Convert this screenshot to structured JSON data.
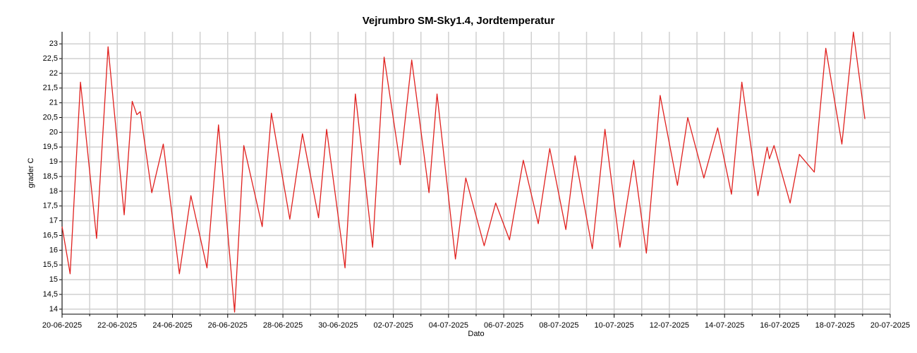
{
  "chart_data": {
    "type": "line",
    "title": "Vejrumbro SM-Sky1.4, Jordtemperatur",
    "x_label": "Dato",
    "y_label": "grader C",
    "x": [
      "2025-06-20T00:00",
      "2025-06-20T07:00",
      "2025-06-20T16:00",
      "2025-06-21T06:00",
      "2025-06-21T16:00",
      "2025-06-22T06:00",
      "2025-06-22T13:00",
      "2025-06-22T17:00",
      "2025-06-22T20:00",
      "2025-06-23T06:00",
      "2025-06-23T16:00",
      "2025-06-24T06:00",
      "2025-06-24T16:00",
      "2025-06-25T06:00",
      "2025-06-25T16:00",
      "2025-06-26T06:00",
      "2025-06-26T14:00",
      "2025-06-27T06:00",
      "2025-06-27T14:00",
      "2025-06-28T06:00",
      "2025-06-28T17:00",
      "2025-06-29T07:00",
      "2025-06-29T14:00",
      "2025-06-30T06:00",
      "2025-06-30T15:00",
      "2025-07-01T06:00",
      "2025-07-01T16:00",
      "2025-07-02T06:00",
      "2025-07-02T16:00",
      "2025-07-03T07:00",
      "2025-07-03T14:00",
      "2025-07-04T06:00",
      "2025-07-04T15:00",
      "2025-07-05T07:00",
      "2025-07-05T17:00",
      "2025-07-06T05:00",
      "2025-07-06T17:00",
      "2025-07-07T06:00",
      "2025-07-07T16:00",
      "2025-07-08T06:00",
      "2025-07-08T14:00",
      "2025-07-09T05:00",
      "2025-07-09T16:00",
      "2025-07-10T05:00",
      "2025-07-10T17:00",
      "2025-07-11T04:00",
      "2025-07-11T16:00",
      "2025-07-12T07:00",
      "2025-07-12T16:00",
      "2025-07-13T06:00",
      "2025-07-13T18:00",
      "2025-07-14T06:00",
      "2025-07-14T15:00",
      "2025-07-15T05:00",
      "2025-07-15T13:00",
      "2025-07-15T15:00",
      "2025-07-15T19:00",
      "2025-07-16T09:00",
      "2025-07-16T17:00",
      "2025-07-17T06:00",
      "2025-07-17T16:00",
      "2025-07-18T06:00",
      "2025-07-18T16:00",
      "2025-07-19T02:00"
    ],
    "series": [
      {
        "color": "#e0201e",
        "values": [
          16.8,
          15.2,
          21.7,
          16.4,
          22.9,
          17.2,
          21.05,
          20.6,
          20.7,
          17.95,
          19.6,
          15.2,
          17.85,
          15.4,
          20.25,
          13.9,
          19.55,
          16.8,
          20.65,
          17.05,
          19.95,
          17.1,
          20.1,
          15.4,
          21.3,
          16.1,
          22.55,
          18.9,
          22.45,
          17.95,
          21.3,
          15.7,
          18.45,
          16.15,
          17.6,
          16.35,
          19.05,
          16.9,
          19.45,
          16.7,
          19.2,
          16.05,
          20.1,
          16.1,
          19.05,
          15.9,
          21.25,
          18.2,
          20.5,
          18.45,
          20.15,
          17.9,
          21.7,
          17.85,
          19.5,
          19.1,
          19.55,
          17.6,
          19.25,
          18.65,
          22.85,
          19.6,
          23.4,
          20.45
        ]
      }
    ],
    "xlim": [
      "2025-06-20T00:00",
      "2025-07-20T00:00"
    ],
    "xticks": [
      {
        "value": "2025-06-20T00:00",
        "label": "20-06-2025"
      },
      {
        "value": "2025-06-22T00:00",
        "label": "22-06-2025"
      },
      {
        "value": "2025-06-24T00:00",
        "label": "24-06-2025"
      },
      {
        "value": "2025-06-26T00:00",
        "label": "26-06-2025"
      },
      {
        "value": "2025-06-28T00:00",
        "label": "28-06-2025"
      },
      {
        "value": "2025-06-30T00:00",
        "label": "30-06-2025"
      },
      {
        "value": "2025-07-02T00:00",
        "label": "02-07-2025"
      },
      {
        "value": "2025-07-04T00:00",
        "label": "04-07-2025"
      },
      {
        "value": "2025-07-06T00:00",
        "label": "06-07-2025"
      },
      {
        "value": "2025-07-08T00:00",
        "label": "08-07-2025"
      },
      {
        "value": "2025-07-10T00:00",
        "label": "10-07-2025"
      },
      {
        "value": "2025-07-12T00:00",
        "label": "12-07-2025"
      },
      {
        "value": "2025-07-14T00:00",
        "label": "14-07-2025"
      },
      {
        "value": "2025-07-16T00:00",
        "label": "16-07-2025"
      },
      {
        "value": "2025-07-18T00:00",
        "label": "18-07-2025"
      },
      {
        "value": "2025-07-20T00:00",
        "label": "20-07-2025"
      }
    ],
    "ylim": [
      13.83,
      23.41
    ],
    "yticks": [
      14,
      {
        "value": 14.5,
        "label": "14,5"
      },
      15,
      {
        "value": 15.5,
        "label": "15,5"
      },
      16,
      {
        "value": 16.5,
        "label": "16,5"
      },
      17,
      {
        "value": 17.5,
        "label": "17,5"
      },
      18,
      {
        "value": 18.5,
        "label": "18,5"
      },
      19,
      {
        "value": 19.5,
        "label": "19,5"
      },
      20,
      {
        "value": 20.5,
        "label": "20,5"
      },
      21,
      {
        "value": 21.5,
        "label": "21,5"
      },
      22,
      {
        "value": 22.5,
        "label": "22,5"
      },
      23
    ],
    "grid": true
  }
}
